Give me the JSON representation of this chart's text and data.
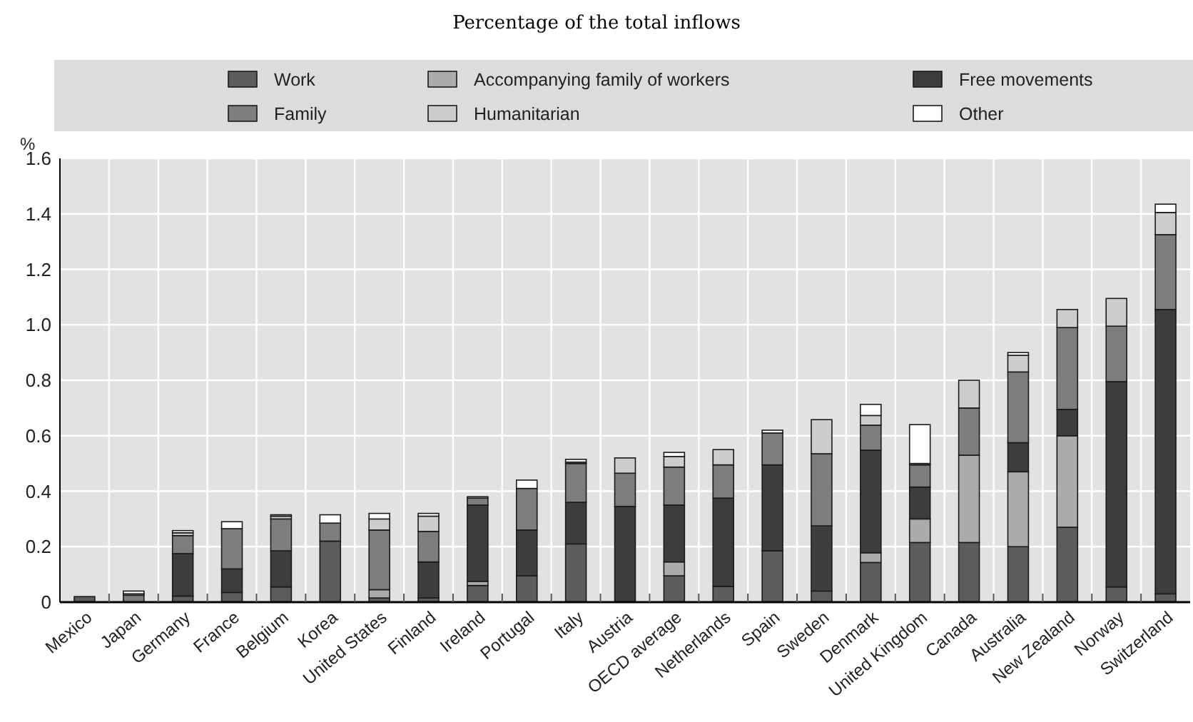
{
  "chart_data": {
    "type": "bar",
    "title": "Percentage of the total inflows",
    "ylabel": "%",
    "stacked": true,
    "grid": true,
    "legend": "top",
    "categories": [
      "Mexico",
      "Japan",
      "Germany",
      "France",
      "Belgium",
      "Korea",
      "United States",
      "Finland",
      "Ireland",
      "Portugal",
      "Italy",
      "Austria",
      "OECD average",
      "Netherlands",
      "Spain",
      "Sweden",
      "Denmark",
      "United Kingdom",
      "Canada",
      "Australia",
      "New Zealand",
      "Norway",
      "Switzerland"
    ],
    "ylim": [
      0,
      1.6
    ],
    "yticks": [
      0,
      0.2,
      0.4,
      0.6,
      0.8,
      {
        "value": 1,
        "label": "1.0"
      },
      1.2,
      1.4,
      1.6
    ],
    "series": [
      {
        "name": "Work",
        "color": "#5c5c5c",
        "values": [
          0.02,
          null,
          0.022,
          0.035,
          0.055,
          0.22,
          0.015,
          0.015,
          0.06,
          0.095,
          0.21,
          null,
          0.095,
          0.057,
          0.185,
          0.04,
          0.143,
          0.215,
          0.215,
          0.2,
          0.27,
          0.055,
          0.03
        ]
      },
      {
        "name": "Accompanying family of workers",
        "color": "#ababab",
        "values": [
          0,
          0,
          0,
          0,
          0,
          0,
          0.03,
          0,
          0.015,
          0,
          0,
          0,
          0.05,
          0,
          0,
          0,
          0.035,
          0.085,
          0.315,
          0.27,
          0.33,
          0,
          0
        ]
      },
      {
        "name": "Free movements",
        "color": "#3d3d3d",
        "values": [
          0,
          0,
          0.153,
          0.085,
          0.13,
          0,
          0,
          0.13,
          0.275,
          0.165,
          0.15,
          0.345,
          0.205,
          0.318,
          0.31,
          0.235,
          0.37,
          0.115,
          0,
          0.105,
          0.095,
          0.74,
          1.025
        ]
      },
      {
        "name": "Family",
        "color": "#7d7d7d",
        "values": [
          0,
          0.025,
          0.065,
          0.145,
          0.115,
          0.065,
          0.215,
          0.11,
          0.025,
          0.15,
          0.14,
          0.12,
          0.137,
          0.12,
          0.115,
          0.26,
          0.09,
          0.08,
          0.17,
          0.255,
          0.295,
          0.2,
          0.27
        ]
      },
      {
        "name": "Humanitarian",
        "color": "#cdcdcd",
        "values": [
          0,
          0.005,
          0.01,
          null,
          0.01,
          0,
          0.04,
          0.055,
          0,
          0,
          0.005,
          0.055,
          0.038,
          0.055,
          null,
          0.123,
          0.035,
          0.005,
          0.1,
          0.06,
          0.065,
          0.1,
          0.08
        ]
      },
      {
        "name": "Other",
        "color": "#ffffff",
        "values": [
          0,
          0.01,
          0.008,
          0.025,
          0.005,
          0.03,
          0.02,
          0.01,
          0.005,
          0.03,
          0.01,
          0,
          0.015,
          0,
          0.01,
          0,
          0.04,
          0.14,
          0,
          0.01,
          0,
          0,
          0.03
        ]
      }
    ]
  }
}
